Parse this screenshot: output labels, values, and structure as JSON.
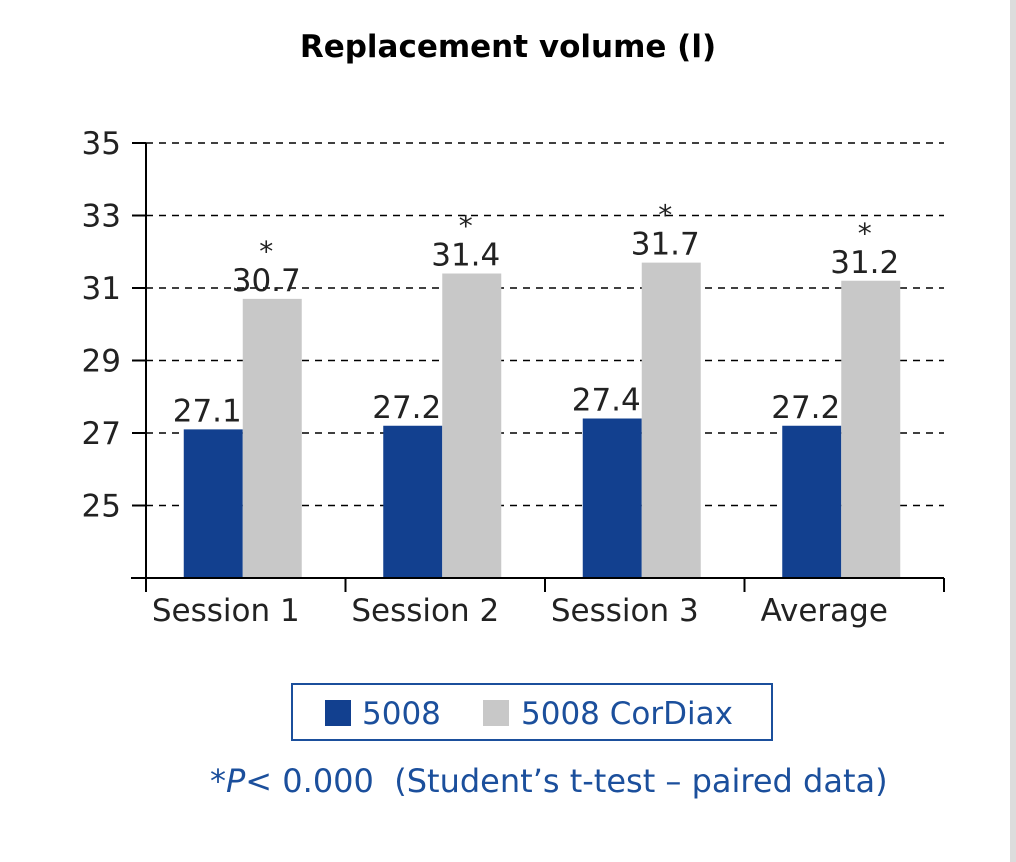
{
  "chart_data": {
    "type": "bar",
    "title": "Replacement volume (l)",
    "categories": [
      "Session 1",
      "Session 2",
      "Session 3",
      "Average"
    ],
    "series": [
      {
        "name": "5008",
        "values": [
          27.1,
          27.2,
          27.4,
          27.2
        ],
        "color": "#12408f"
      },
      {
        "name": "5008 CorDiax",
        "values": [
          30.7,
          31.4,
          31.7,
          31.2
        ],
        "color": "#c8c8c8"
      }
    ],
    "data_labels": [
      [
        "27.1",
        "27.2",
        "27.4",
        "27.2"
      ],
      [
        "30.7",
        "31.4",
        "31.7",
        "31.2"
      ]
    ],
    "significance_marker": "*",
    "y_ticks": [
      "25",
      "27",
      "29",
      "31",
      "33",
      "35"
    ],
    "ylim": [
      23,
      35
    ],
    "grid": "dashed horizontal",
    "legend_position": "bottom",
    "footnote": {
      "star": "*",
      "p": "P",
      "rest": "< 0.000  (Student’s t-test – paired data)"
    }
  }
}
